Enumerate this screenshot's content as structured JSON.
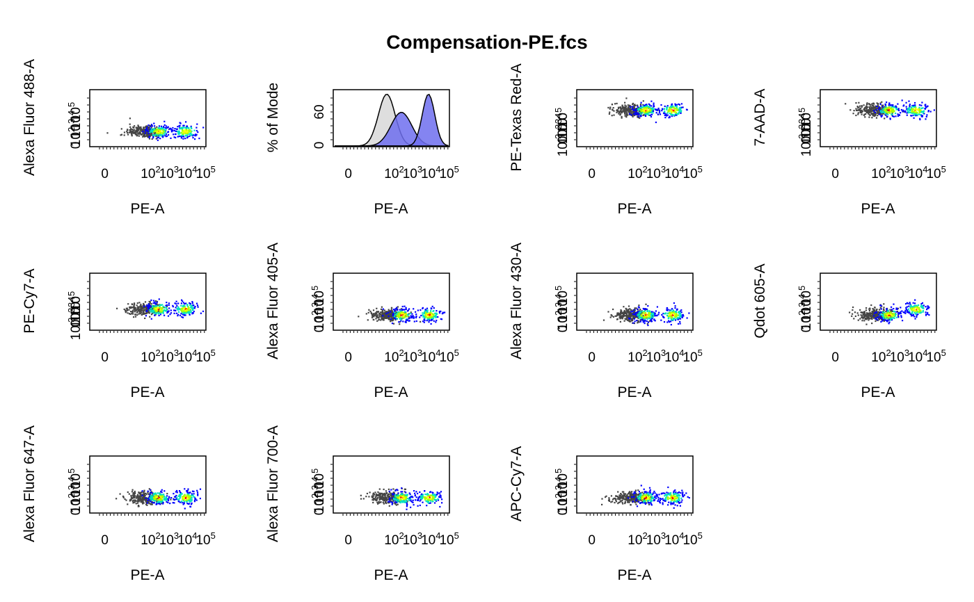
{
  "figure": {
    "title": "Compensation-PE.fcs"
  },
  "colors": {
    "gray_population": "#454545",
    "density_low": "#0000ff",
    "density_mid": "#00e0c0",
    "density_midhigh": "#aaff00",
    "density_high": "#ffff00",
    "density_peak": "#ff0000",
    "hist_gray_fill": "#dcdcdc",
    "hist_blue_fill": "#6f6fee"
  },
  "chart_data": [
    {
      "type": "scatter",
      "subtype": "density",
      "xlabel": "PE-A",
      "ylabel": "Alexa Fluor 488-A",
      "x_scale": "log",
      "x_ticks": [
        "0",
        "10^2",
        "10^3",
        "10^4",
        "10^5"
      ],
      "y_ticks": [
        "0",
        "10^2",
        "10^3",
        "10^4",
        "10^5"
      ],
      "populations": [
        {
          "name": "",
          "x_center": 80,
          "y_level": "low",
          "color": "gray"
        },
        {
          "name": "",
          "x_center": 500,
          "y_level": "low",
          "color": "density"
        },
        {
          "name": "",
          "x_center": 15000,
          "y_level": "low",
          "color": "density"
        }
      ]
    },
    {
      "type": "area",
      "subtype": "histogram",
      "xlabel": "PE-A",
      "ylabel": "% of Mode",
      "x_scale": "log",
      "x_ticks": [
        "0",
        "10^2",
        "10^3",
        "10^4",
        "10^5"
      ],
      "y_ticks": [
        "0",
        "60"
      ],
      "series": [
        {
          "name": "",
          "peak_x": 80,
          "peak_y": 100,
          "color": "gray"
        },
        {
          "name": "",
          "peak_x": 500,
          "peak_y": 65,
          "color": "blue"
        },
        {
          "name": "",
          "peak_x": 15000,
          "peak_y": 100,
          "color": "blue"
        }
      ]
    },
    {
      "type": "scatter",
      "subtype": "density",
      "xlabel": "PE-A",
      "ylabel": "PE-Texas Red-A",
      "x_scale": "log",
      "x_ticks": [
        "0",
        "10^2",
        "10^3",
        "10^4",
        "10^5"
      ],
      "y_ticks": [
        "10^-3",
        "0",
        "10^2",
        "10^3",
        "10^4",
        "10^5"
      ],
      "populations": [
        {
          "name": "",
          "x_center": 80,
          "y_level": "high",
          "color": "gray"
        },
        {
          "name": "",
          "x_center": 500,
          "y_level": "high",
          "color": "density"
        },
        {
          "name": "",
          "x_center": 15000,
          "y_level": "high",
          "color": "density"
        }
      ]
    },
    {
      "type": "scatter",
      "subtype": "density",
      "xlabel": "PE-A",
      "ylabel": "7-AAD-A",
      "x_scale": "log",
      "x_ticks": [
        "0",
        "10^2",
        "10^3",
        "10^4",
        "10^5"
      ],
      "y_ticks": [
        "10^-3",
        "0",
        "10^2",
        "10^3",
        "10^4",
        "10^5"
      ],
      "populations": [
        {
          "name": "",
          "x_center": 80,
          "y_level": "high",
          "color": "gray"
        },
        {
          "name": "",
          "x_center": 500,
          "y_level": "high",
          "color": "density"
        },
        {
          "name": "",
          "x_center": 15000,
          "y_level": "high",
          "color": "density"
        }
      ]
    },
    {
      "type": "scatter",
      "subtype": "density",
      "xlabel": "PE-A",
      "ylabel": "PE-Cy7-A",
      "x_scale": "log",
      "x_ticks": [
        "0",
        "10^2",
        "10^3",
        "10^4",
        "10^5"
      ],
      "y_ticks": [
        "10^-3",
        "0",
        "10^2",
        "10^3",
        "10^4",
        "10^5"
      ],
      "populations": [
        {
          "name": "",
          "x_center": 80,
          "y_level": "mid",
          "color": "gray"
        },
        {
          "name": "",
          "x_center": 500,
          "y_level": "mid",
          "color": "density"
        },
        {
          "name": "",
          "x_center": 15000,
          "y_level": "mid",
          "color": "density"
        }
      ]
    },
    {
      "type": "scatter",
      "subtype": "density",
      "xlabel": "PE-A",
      "ylabel": "Alexa Fluor 405-A",
      "x_scale": "log",
      "x_ticks": [
        "0",
        "10^2",
        "10^3",
        "10^4",
        "10^5"
      ],
      "y_ticks": [
        "0",
        "10^2",
        "10^3",
        "10^4",
        "10^5"
      ],
      "populations": [
        {
          "name": "",
          "x_center": 80,
          "y_level": "low",
          "color": "gray"
        },
        {
          "name": "",
          "x_center": 500,
          "y_level": "low",
          "color": "density"
        },
        {
          "name": "",
          "x_center": 15000,
          "y_level": "low",
          "color": "density"
        }
      ]
    },
    {
      "type": "scatter",
      "subtype": "density",
      "xlabel": "PE-A",
      "ylabel": "Alexa Fluor 430-A",
      "x_scale": "log",
      "x_ticks": [
        "0",
        "10^2",
        "10^3",
        "10^4",
        "10^5"
      ],
      "y_ticks": [
        "0",
        "10^2",
        "10^3",
        "10^4",
        "10^5"
      ],
      "populations": [
        {
          "name": "",
          "x_center": 80,
          "y_level": "low",
          "color": "gray"
        },
        {
          "name": "",
          "x_center": 500,
          "y_level": "low",
          "color": "density"
        },
        {
          "name": "",
          "x_center": 15000,
          "y_level": "low",
          "color": "density"
        }
      ]
    },
    {
      "type": "scatter",
      "subtype": "density",
      "xlabel": "PE-A",
      "ylabel": "Qdot 605-A",
      "x_scale": "log",
      "x_ticks": [
        "0",
        "10^2",
        "10^3",
        "10^4",
        "10^5"
      ],
      "y_ticks": [
        "0",
        "10^2",
        "10^3",
        "10^4",
        "10^5"
      ],
      "populations": [
        {
          "name": "",
          "x_center": 80,
          "y_level": "low",
          "color": "gray"
        },
        {
          "name": "",
          "x_center": 500,
          "y_level": "low",
          "color": "density"
        },
        {
          "name": "",
          "x_center": 15000,
          "y_level": "mid",
          "color": "density"
        }
      ]
    },
    {
      "type": "scatter",
      "subtype": "density",
      "xlabel": "PE-A",
      "ylabel": "Alexa Fluor 647-A",
      "x_scale": "log",
      "x_ticks": [
        "0",
        "10^2",
        "10^3",
        "10^4",
        "10^5"
      ],
      "y_ticks": [
        "0",
        "10^2",
        "10^3",
        "10^4",
        "10^5"
      ],
      "populations": [
        {
          "name": "",
          "x_center": 80,
          "y_level": "low",
          "color": "gray"
        },
        {
          "name": "",
          "x_center": 500,
          "y_level": "low",
          "color": "density"
        },
        {
          "name": "",
          "x_center": 15000,
          "y_level": "low",
          "color": "density"
        }
      ]
    },
    {
      "type": "scatter",
      "subtype": "density",
      "xlabel": "PE-A",
      "ylabel": "Alexa Fluor 700-A",
      "x_scale": "log",
      "x_ticks": [
        "0",
        "10^2",
        "10^3",
        "10^4",
        "10^5"
      ],
      "y_ticks": [
        "0",
        "10^2",
        "10^3",
        "10^4",
        "10^5"
      ],
      "populations": [
        {
          "name": "",
          "x_center": 80,
          "y_level": "low",
          "color": "gray"
        },
        {
          "name": "",
          "x_center": 500,
          "y_level": "low",
          "color": "density"
        },
        {
          "name": "",
          "x_center": 15000,
          "y_level": "low",
          "color": "density"
        }
      ]
    },
    {
      "type": "scatter",
      "subtype": "density",
      "xlabel": "PE-A",
      "ylabel": "APC-Cy7-A",
      "x_scale": "log",
      "x_ticks": [
        "0",
        "10^2",
        "10^3",
        "10^4",
        "10^5"
      ],
      "y_ticks": [
        "0",
        "10^2",
        "10^3",
        "10^4",
        "10^5"
      ],
      "populations": [
        {
          "name": "",
          "x_center": 80,
          "y_level": "low",
          "color": "gray"
        },
        {
          "name": "",
          "x_center": 500,
          "y_level": "low",
          "color": "density"
        },
        {
          "name": "",
          "x_center": 15000,
          "y_level": "low",
          "color": "density"
        }
      ]
    }
  ]
}
